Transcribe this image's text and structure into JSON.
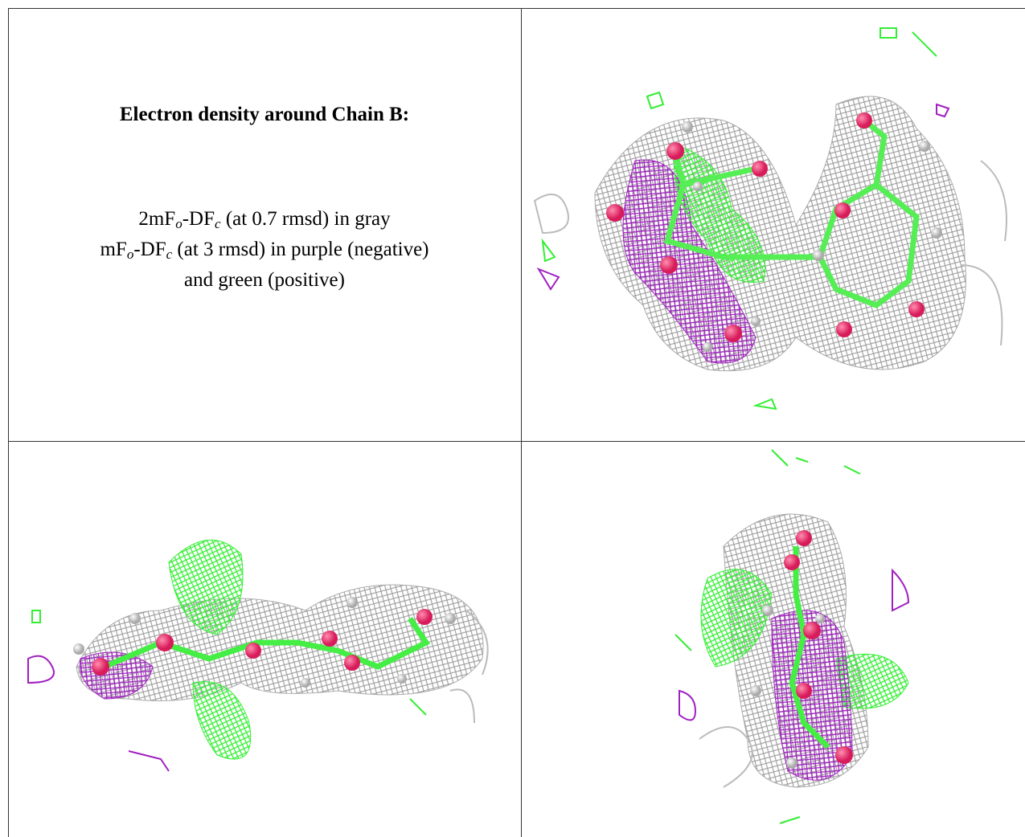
{
  "caption_cell": {
    "title": "Electron density around Chain B:",
    "lines": [
      [
        {
          "text": "2mF"
        },
        {
          "sub": "o"
        },
        {
          "text": "-DF"
        },
        {
          "sub": "c"
        },
        {
          "text": " (at 0.7 rmsd) in gray"
        }
      ],
      [
        {
          "text": "mF"
        },
        {
          "sub": "o"
        },
        {
          "text": "-DF"
        },
        {
          "sub": "c"
        },
        {
          "text": " (at 3 rmsd) in purple (negative)"
        }
      ],
      [
        {
          "text": "and green (positive)"
        }
      ]
    ]
  }
}
